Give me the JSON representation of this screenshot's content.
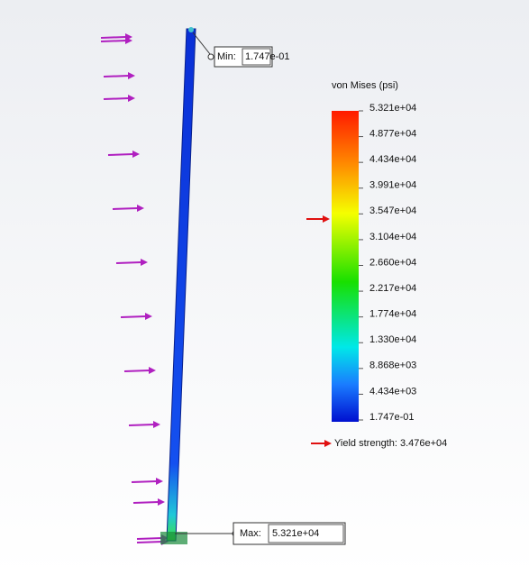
{
  "min_probe": {
    "label": "Min:",
    "value": "1.747e-01"
  },
  "legend": {
    "title": "von Mises (psi)",
    "labels": [
      "5.321e+04",
      "4.877e+04",
      "4.434e+04",
      "3.991e+04",
      "3.547e+04",
      "3.104e+04",
      "2.660e+04",
      "2.217e+04",
      "1.774e+04",
      "1.330e+04",
      "8.868e+03",
      "4.434e+03",
      "1.747e-01"
    ],
    "yield_label": "Yield strength: 3.476e+04"
  },
  "max_probe": {
    "label": "Max:",
    "value": "5.321e+04"
  }
}
